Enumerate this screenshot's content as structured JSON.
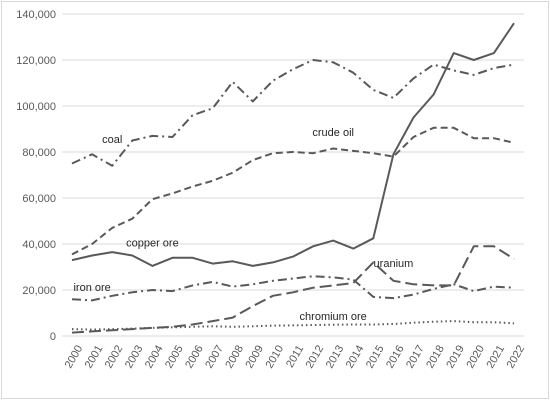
{
  "chart_data": {
    "type": "line",
    "title": "",
    "xlabel": "",
    "ylabel": "",
    "ylim": [
      0,
      140000
    ],
    "yticks": [
      "0",
      "20,000",
      "40,000",
      "60,000",
      "80,000",
      "100,000",
      "120,000",
      "140,000"
    ],
    "ytick_values": [
      0,
      20000,
      40000,
      60000,
      80000,
      100000,
      120000,
      140000
    ],
    "grid": "horizontal",
    "legend": "none (series labelled inline)",
    "categories": [
      "2000",
      "2001",
      "2002",
      "2003",
      "2004",
      "2005",
      "2006",
      "2007",
      "2008",
      "2009",
      "2010",
      "2011",
      "2012",
      "2013",
      "2014",
      "2015",
      "2016",
      "2017",
      "2018",
      "2019",
      "2020",
      "2021",
      "2022"
    ],
    "series": [
      {
        "name": "coal",
        "dash": "dash-dot",
        "values": [
          75000,
          79000,
          74000,
          85000,
          87000,
          86500,
          96000,
          99000,
          110500,
          102000,
          111000,
          116000,
          120000,
          119000,
          114500,
          107000,
          103500,
          112000,
          118000,
          115500,
          113500,
          116500,
          118000
        ]
      },
      {
        "name": "crude oil",
        "dash": "dash",
        "values": [
          35500,
          40000,
          47000,
          51000,
          59500,
          62000,
          65000,
          67500,
          71000,
          76500,
          79500,
          80000,
          79500,
          81500,
          80500,
          79500,
          78000,
          86500,
          90500,
          90500,
          86000,
          86000,
          84000
        ]
      },
      {
        "name": "copper ore",
        "dash": "solid",
        "values": [
          33000,
          35000,
          36500,
          35000,
          30500,
          34000,
          34000,
          31500,
          32500,
          30500,
          32000,
          34500,
          39000,
          41500,
          38000,
          42500,
          79000,
          95000,
          105000,
          123000,
          120000,
          123000,
          136000
        ]
      },
      {
        "name": "uranium",
        "dash": "long-dash",
        "values": [
          1500,
          2000,
          2500,
          3000,
          3500,
          4000,
          5000,
          6500,
          8000,
          13000,
          17500,
          19000,
          21000,
          22000,
          23000,
          32000,
          24000,
          22500,
          22000,
          22000,
          39000,
          39000,
          33500
        ]
      },
      {
        "name": "iron ore",
        "dash": "dash-dot",
        "values": [
          16000,
          15500,
          17500,
          19000,
          20000,
          19500,
          22000,
          23500,
          21500,
          22500,
          24000,
          25000,
          26000,
          25500,
          24500,
          17000,
          16500,
          18000,
          20500,
          22500,
          19500,
          21500,
          21000
        ]
      },
      {
        "name": "chromium ore",
        "dash": "dot",
        "values": [
          3000,
          2800,
          3000,
          3200,
          3500,
          3800,
          4000,
          4200,
          4000,
          4200,
          4500,
          4600,
          4800,
          4900,
          5000,
          5000,
          5200,
          5800,
          6200,
          6500,
          6000,
          6000,
          5500
        ]
      }
    ],
    "colors": {
      "lines": "#595959",
      "grid": "#d9d9d9",
      "text": "#595959"
    }
  }
}
